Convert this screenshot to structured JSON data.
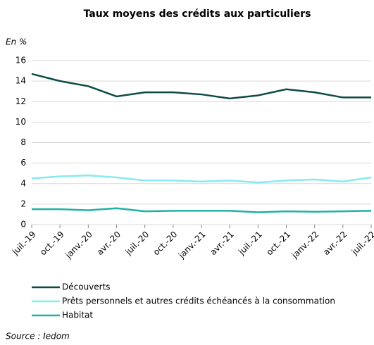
{
  "chart_data": {
    "type": "line",
    "title": "Taux  moyens des crédits aux particuliers",
    "y_axis_label": "En %",
    "source": "Source : Iedom",
    "categories": [
      "juil.-19",
      "oct.-19",
      "janv.-20",
      "avr.-20",
      "juil.-20",
      "oct.-20",
      "janv.-21",
      "avr.-21",
      "juil.-21",
      "oct.-21",
      "janv.-22",
      "avr.-22",
      "juil.-22"
    ],
    "series": [
      {
        "name": "Découverts",
        "color": "#0e4b47",
        "values": [
          14.7,
          14.0,
          13.5,
          12.5,
          12.9,
          12.9,
          12.7,
          12.3,
          12.6,
          13.2,
          12.9,
          12.4,
          12.4
        ]
      },
      {
        "name": "Prêts personnels et autres crédits échéancés à la consommation",
        "color": "#86eaf0",
        "values": [
          4.5,
          4.7,
          4.8,
          4.6,
          4.3,
          4.3,
          4.2,
          4.3,
          4.1,
          4.3,
          4.4,
          4.2,
          4.6
        ]
      },
      {
        "name": "Habitat",
        "color": "#1fb1a6",
        "values": [
          1.5,
          1.5,
          1.4,
          1.6,
          1.3,
          1.35,
          1.35,
          1.35,
          1.2,
          1.3,
          1.25,
          1.3,
          1.35
        ]
      }
    ],
    "ylim": [
      0,
      16
    ],
    "yticks": [
      0,
      2,
      4,
      6,
      8,
      10,
      12,
      14,
      16
    ],
    "grid": true,
    "legend": "bottom"
  }
}
